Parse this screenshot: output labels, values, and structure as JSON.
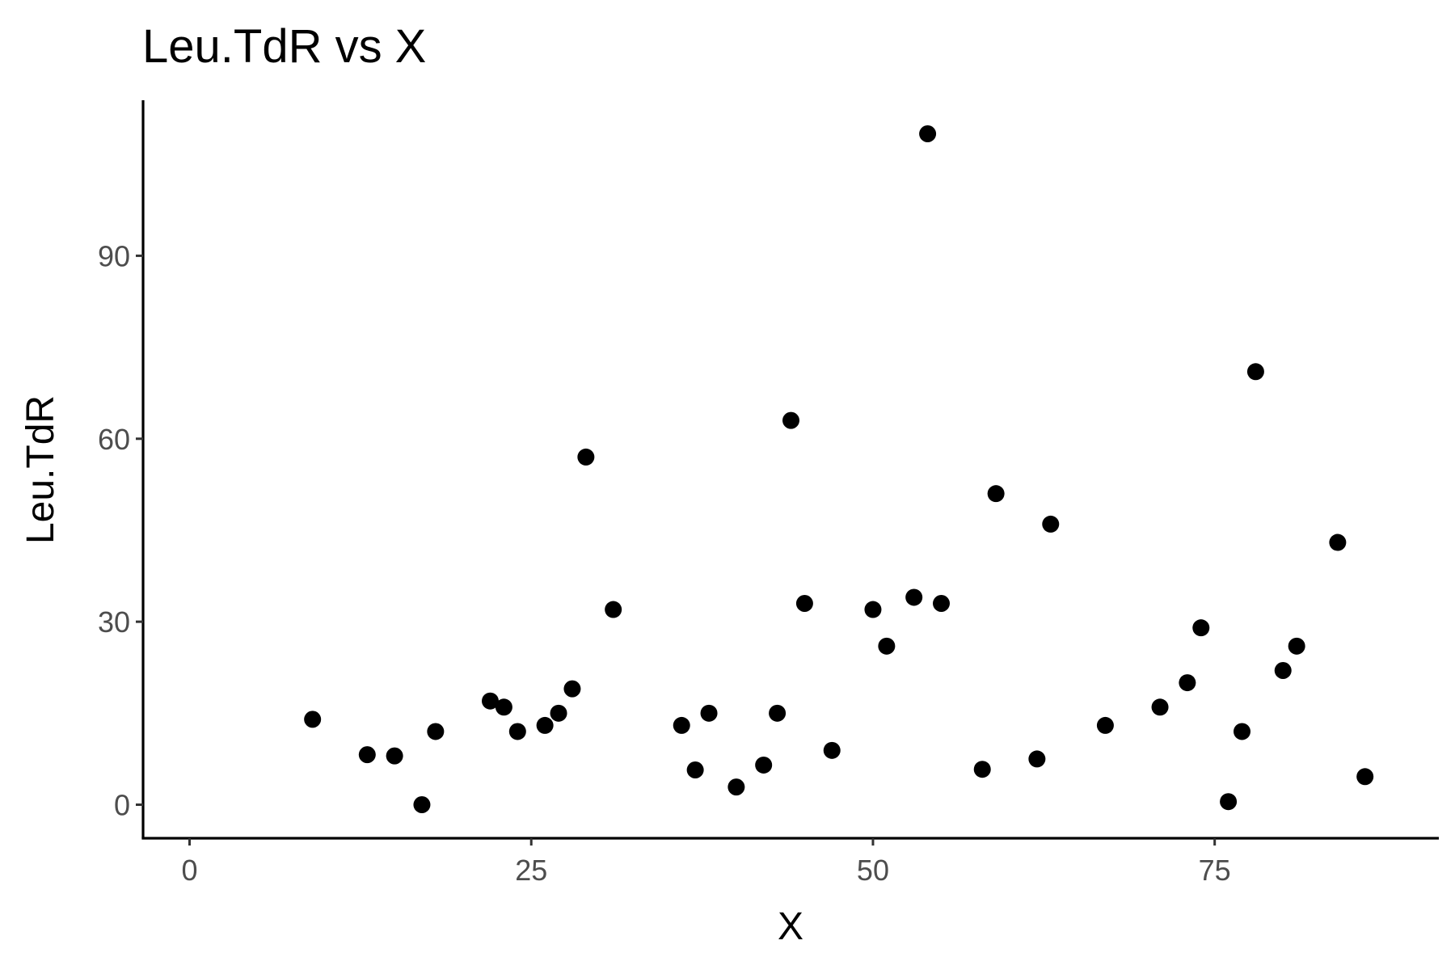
{
  "chart_data": {
    "type": "scatter",
    "title": "Leu.TdR vs X",
    "xlabel": "X",
    "ylabel": "Leu.TdR",
    "xlim": [
      -3.4,
      91.4
    ],
    "ylim": [
      -5.5,
      115.5
    ],
    "x_ticks": [
      0,
      25,
      50,
      75
    ],
    "y_ticks": [
      0,
      30,
      60,
      90
    ],
    "grid": false,
    "legend": "none",
    "point_color": "#000000",
    "series": [
      {
        "x": [
          9,
          13,
          15,
          17,
          18,
          22,
          23,
          24,
          26,
          27,
          28,
          29,
          31,
          36,
          37,
          38,
          40,
          42,
          43,
          44,
          45,
          47,
          50,
          51,
          53,
          54,
          55,
          58,
          59,
          62,
          63,
          67,
          71,
          73,
          74,
          76,
          77,
          78,
          80,
          81,
          84,
          86
        ],
        "y": [
          14,
          8.2,
          8,
          0,
          12,
          17,
          16,
          12,
          13,
          15,
          19,
          57,
          32,
          13,
          5.7,
          15,
          2.9,
          6.5,
          15,
          63,
          33,
          8.9,
          32,
          26,
          34,
          110,
          33,
          5.8,
          51,
          7.5,
          46,
          13,
          16,
          20,
          29,
          0.5,
          12,
          71,
          22,
          26,
          43,
          4.6
        ]
      }
    ]
  }
}
